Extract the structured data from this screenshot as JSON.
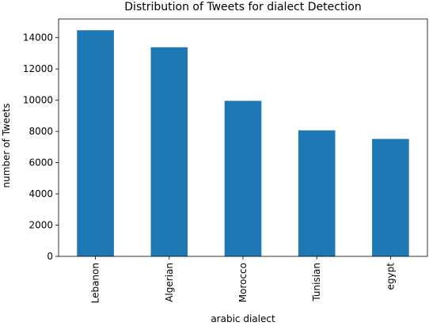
{
  "chart_data": {
    "type": "bar",
    "title": "Distribution of Tweets for dialect Detection",
    "xlabel": "arabic dialect",
    "ylabel": "number of Tweets",
    "categories": [
      "Lebanon",
      "Algerian",
      "Morocco",
      "Tunisian",
      "egypt"
    ],
    "values": [
      14480,
      13390,
      9960,
      8070,
      7520
    ],
    "ylim": [
      0,
      15200
    ],
    "yticks": [
      0,
      2000,
      4000,
      6000,
      8000,
      10000,
      12000,
      14000
    ],
    "grid": false,
    "legend": "none",
    "bar_color": "#1f77b4"
  }
}
